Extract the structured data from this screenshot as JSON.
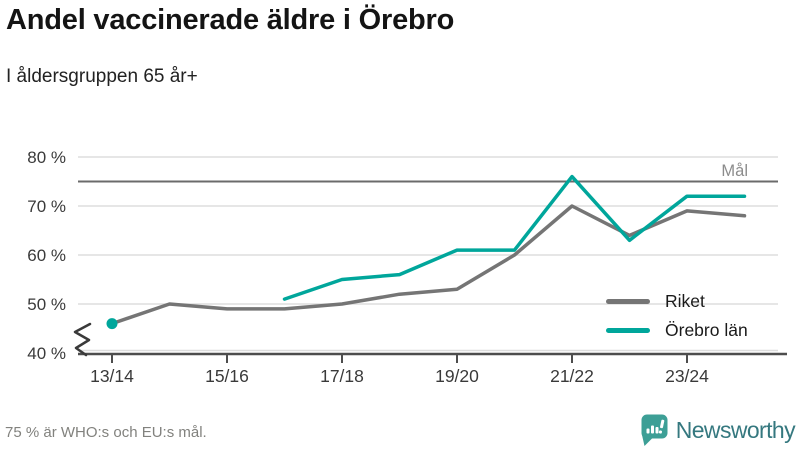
{
  "header": {
    "title": "Andel vaccinerade äldre i Örebro",
    "subtitle": "I åldersgruppen 65 år+"
  },
  "chart_data": {
    "type": "line",
    "title": "Andel vaccinerade äldre i Örebro",
    "subtitle": "I åldersgruppen 65 år+",
    "categories": [
      "13/14",
      "14/15",
      "15/16",
      "16/17",
      "17/18",
      "18/19",
      "19/20",
      "20/21",
      "21/22",
      "22/23",
      "23/24",
      "24/25"
    ],
    "x_tick_labels": [
      "13/14",
      "15/16",
      "17/18",
      "19/20",
      "21/22",
      "23/24"
    ],
    "x_tick_indices": [
      0,
      2,
      4,
      6,
      8,
      10
    ],
    "series": [
      {
        "name": "Riket",
        "color": "#757575",
        "values": [
          46,
          50,
          49,
          49,
          50,
          52,
          53,
          60,
          70,
          64,
          69,
          68
        ]
      },
      {
        "name": "Örebro län",
        "color": "#00a69b",
        "values": [
          46,
          null,
          null,
          51,
          55,
          56,
          61,
          61,
          76,
          63,
          72,
          72
        ]
      }
    ],
    "target": {
      "value": 75,
      "label": "Mål"
    },
    "ylim": [
      40,
      80
    ],
    "yticks": [
      40,
      50,
      60,
      70,
      80
    ],
    "ytick_format": "{v} %",
    "unit": "%",
    "axis_break": true,
    "grid": true,
    "legend_position": "inside-right"
  },
  "footer": {
    "note": "75 % är WHO:s och EU:s mål.",
    "brand": "Newsworthy"
  },
  "colors": {
    "accent": "#00a69b",
    "gray_line": "#757575",
    "grid": "#dddddd",
    "axis": "#4d4d4d",
    "tick_text": "#3a3a3a",
    "target_line": "#6b6b6b",
    "target_label": "#8c8c8c",
    "note_text": "#82827e",
    "brand_teal": "#3d9f96",
    "brand_text": "#35787f",
    "title_text": "#141414"
  }
}
